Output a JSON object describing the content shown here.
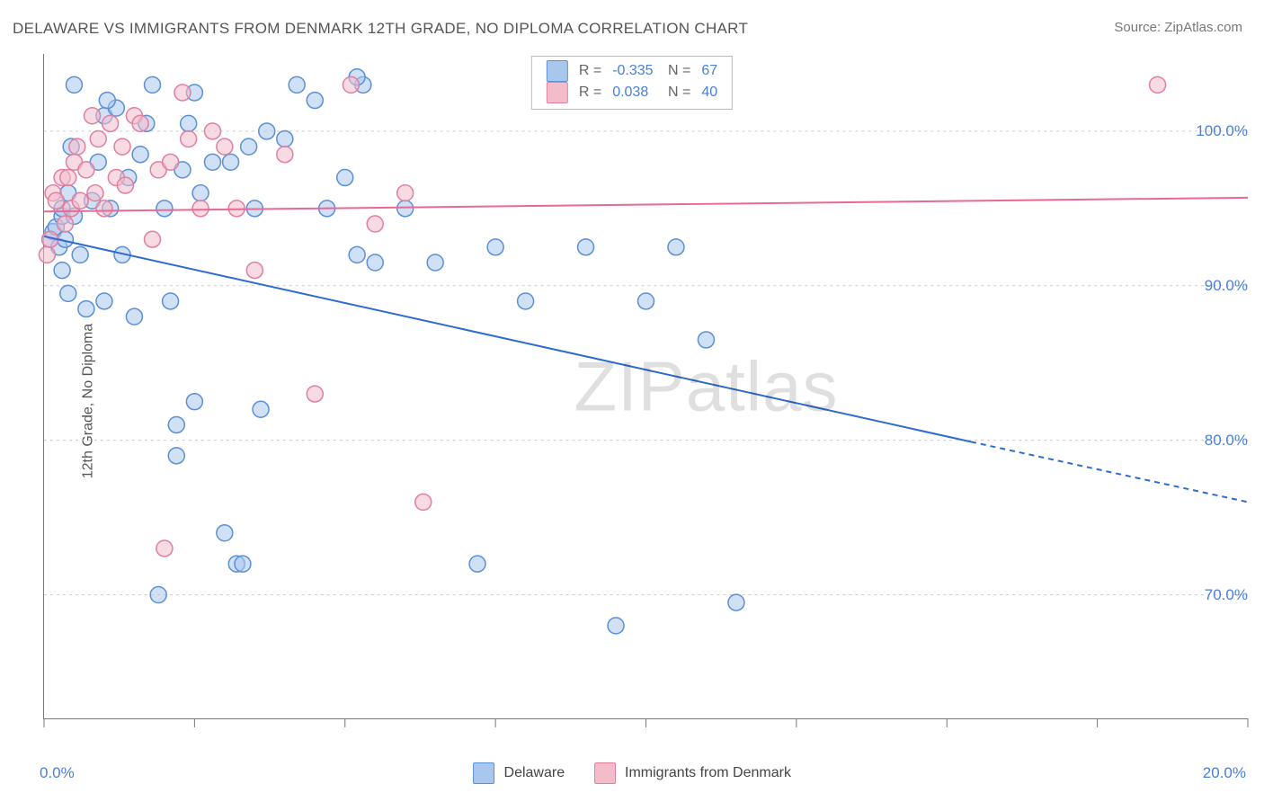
{
  "title": "DELAWARE VS IMMIGRANTS FROM DENMARK 12TH GRADE, NO DIPLOMA CORRELATION CHART",
  "source_label": "Source:",
  "source_name": "ZipAtlas.com",
  "ylabel": "12th Grade, No Diploma",
  "watermark": "ZIPatlas",
  "chart": {
    "type": "scatter",
    "xlim": [
      0,
      20
    ],
    "ylim": [
      62,
      105
    ],
    "xtick_positions": [
      0,
      2.5,
      5,
      7.5,
      10,
      12.5,
      15,
      17.5,
      20
    ],
    "xtick_labels": {
      "min": "0.0%",
      "max": "20.0%"
    },
    "yticks": [
      70,
      80,
      90,
      100
    ],
    "ytick_labels": [
      "70.0%",
      "80.0%",
      "90.0%",
      "100.0%"
    ],
    "grid_color": "#cccccc",
    "axis_color": "#777777",
    "background_color": "#ffffff",
    "marker_radius": 9,
    "marker_opacity": 0.55,
    "series": [
      {
        "name": "Delaware",
        "color_fill": "#a9c6ec",
        "color_stroke": "#5b8fd6",
        "R": "-0.335",
        "N": "67",
        "regression": {
          "x1": 0,
          "y1": 93.2,
          "x2": 15.4,
          "y2": 79.9,
          "extrap_x2": 20,
          "extrap_y2": 76.0,
          "stroke": "#2e6bd0",
          "width": 2
        },
        "points": [
          [
            0.1,
            93.0
          ],
          [
            0.15,
            93.5
          ],
          [
            0.2,
            93.8
          ],
          [
            0.25,
            92.5
          ],
          [
            0.3,
            94.5
          ],
          [
            0.3,
            95.0
          ],
          [
            0.35,
            93.0
          ],
          [
            0.4,
            96.0
          ],
          [
            0.4,
            89.5
          ],
          [
            0.5,
            94.5
          ],
          [
            0.5,
            103.0
          ],
          [
            0.6,
            92.0
          ],
          [
            0.7,
            88.5
          ],
          [
            0.8,
            95.5
          ],
          [
            0.9,
            98.0
          ],
          [
            1.0,
            101.0
          ],
          [
            1.0,
            89.0
          ],
          [
            1.1,
            95.0
          ],
          [
            1.2,
            101.5
          ],
          [
            1.3,
            92.0
          ],
          [
            1.4,
            97.0
          ],
          [
            1.5,
            88.0
          ],
          [
            1.6,
            98.5
          ],
          [
            1.7,
            100.5
          ],
          [
            1.8,
            103.0
          ],
          [
            1.9,
            70.0
          ],
          [
            2.0,
            95.0
          ],
          [
            2.1,
            89.0
          ],
          [
            2.2,
            81.0
          ],
          [
            2.2,
            79.0
          ],
          [
            2.3,
            97.5
          ],
          [
            2.4,
            100.5
          ],
          [
            2.5,
            102.5
          ],
          [
            2.5,
            82.5
          ],
          [
            2.6,
            96.0
          ],
          [
            2.8,
            98.0
          ],
          [
            3.0,
            74.0
          ],
          [
            3.1,
            98.0
          ],
          [
            3.2,
            72.0
          ],
          [
            3.3,
            72.0
          ],
          [
            3.4,
            99.0
          ],
          [
            3.5,
            95.0
          ],
          [
            3.6,
            82.0
          ],
          [
            3.7,
            100.0
          ],
          [
            4.0,
            99.5
          ],
          [
            4.2,
            103.0
          ],
          [
            4.5,
            102.0
          ],
          [
            4.7,
            95.0
          ],
          [
            5.0,
            97.0
          ],
          [
            5.2,
            92.0
          ],
          [
            5.3,
            103.0
          ],
          [
            5.5,
            91.5
          ],
          [
            6.0,
            95.0
          ],
          [
            6.5,
            91.5
          ],
          [
            7.2,
            72.0
          ],
          [
            7.5,
            92.5
          ],
          [
            8.0,
            89.0
          ],
          [
            9.0,
            92.5
          ],
          [
            9.5,
            68.0
          ],
          [
            10.0,
            89.0
          ],
          [
            10.5,
            92.5
          ],
          [
            11.0,
            86.5
          ],
          [
            11.5,
            69.5
          ],
          [
            5.2,
            103.5
          ],
          [
            1.05,
            102.0
          ],
          [
            0.45,
            99.0
          ],
          [
            0.3,
            91.0
          ]
        ]
      },
      {
        "name": "Immigrants from Denmark",
        "color_fill": "#f3bccb",
        "color_stroke": "#e07fa0",
        "R": "0.038",
        "N": "40",
        "regression": {
          "x1": 0,
          "y1": 94.8,
          "x2": 20,
          "y2": 95.7,
          "stroke": "#e86a94",
          "width": 2
        },
        "points": [
          [
            0.1,
            93.0
          ],
          [
            0.15,
            96.0
          ],
          [
            0.2,
            95.5
          ],
          [
            0.3,
            97.0
          ],
          [
            0.35,
            94.0
          ],
          [
            0.4,
            97.0
          ],
          [
            0.45,
            95.0
          ],
          [
            0.5,
            98.0
          ],
          [
            0.55,
            99.0
          ],
          [
            0.6,
            95.5
          ],
          [
            0.7,
            97.5
          ],
          [
            0.8,
            101.0
          ],
          [
            0.85,
            96.0
          ],
          [
            0.9,
            99.5
          ],
          [
            1.0,
            95.0
          ],
          [
            1.1,
            100.5
          ],
          [
            1.2,
            97.0
          ],
          [
            1.3,
            99.0
          ],
          [
            1.35,
            96.5
          ],
          [
            1.5,
            101.0
          ],
          [
            1.6,
            100.5
          ],
          [
            1.8,
            93.0
          ],
          [
            1.9,
            97.5
          ],
          [
            2.0,
            73.0
          ],
          [
            2.1,
            98.0
          ],
          [
            2.3,
            102.5
          ],
          [
            2.4,
            99.5
          ],
          [
            2.6,
            95.0
          ],
          [
            2.8,
            100.0
          ],
          [
            3.0,
            99.0
          ],
          [
            3.2,
            95.0
          ],
          [
            3.5,
            91.0
          ],
          [
            4.0,
            98.5
          ],
          [
            4.5,
            83.0
          ],
          [
            5.1,
            103.0
          ],
          [
            5.5,
            94.0
          ],
          [
            6.0,
            96.0
          ],
          [
            6.3,
            76.0
          ],
          [
            18.5,
            103.0
          ],
          [
            0.05,
            92.0
          ]
        ]
      }
    ]
  },
  "legend_bottom": {
    "items": [
      {
        "label": "Delaware",
        "fill": "#a9c6ec",
        "stroke": "#5b8fd6"
      },
      {
        "label": "Immigrants from Denmark",
        "fill": "#f3bccb",
        "stroke": "#e07fa0"
      }
    ]
  }
}
